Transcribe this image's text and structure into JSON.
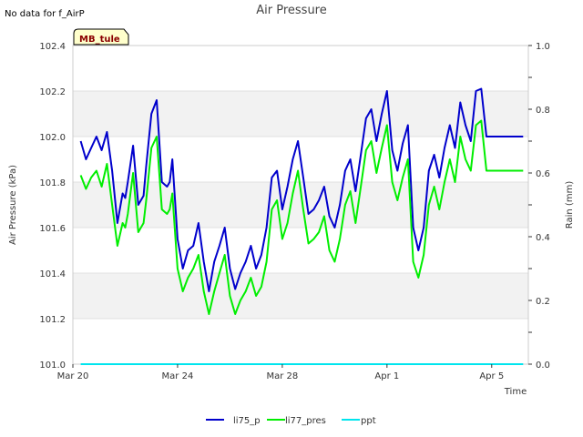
{
  "chart_data": {
    "type": "line",
    "title": "Air Pressure",
    "no_data_note": "No data for f_AirP",
    "site_label": "MB_tule",
    "xlabel": "Time",
    "ylabel": "Air Pressure (kPa)",
    "y2label": "Rain (mm)",
    "x_unit": "days since Mar 20",
    "xlim": [
      0,
      17.4
    ],
    "ylim": [
      101.0,
      102.4
    ],
    "y2lim": [
      0.0,
      1.0
    ],
    "x_ticks": [
      {
        "label": "Mar 20",
        "day": 0
      },
      {
        "label": "Mar 24",
        "day": 4
      },
      {
        "label": "Mar 28",
        "day": 8
      },
      {
        "label": "Apr 1",
        "day": 12
      },
      {
        "label": "Apr 5",
        "day": 16
      }
    ],
    "y_ticks": [
      "101.0",
      "101.2",
      "101.4",
      "101.6",
      "101.8",
      "102.0",
      "102.2",
      "102.4"
    ],
    "y2_ticks": [
      "0.0",
      "0.2",
      "0.4",
      "0.6",
      "0.8",
      "1.0"
    ],
    "bands": [
      [
        101.2,
        101.4
      ],
      [
        101.6,
        101.8
      ],
      [
        102.0,
        102.2
      ]
    ],
    "series": [
      {
        "name": "li75_p",
        "color": "#0000cc",
        "axis": "left",
        "x": [
          0.3,
          0.5,
          0.7,
          0.9,
          1.1,
          1.3,
          1.5,
          1.7,
          1.9,
          2.0,
          2.1,
          2.3,
          2.5,
          2.7,
          2.8,
          3.0,
          3.2,
          3.4,
          3.6,
          3.7,
          3.8,
          4.0,
          4.2,
          4.4,
          4.6,
          4.8,
          5.0,
          5.2,
          5.4,
          5.6,
          5.8,
          6.0,
          6.2,
          6.4,
          6.6,
          6.8,
          7.0,
          7.2,
          7.4,
          7.6,
          7.8,
          8.0,
          8.2,
          8.4,
          8.6,
          8.8,
          9.0,
          9.2,
          9.4,
          9.6,
          9.8,
          10.0,
          10.2,
          10.4,
          10.6,
          10.8,
          11.0,
          11.2,
          11.4,
          11.6,
          11.8,
          12.0,
          12.2,
          12.4,
          12.6,
          12.8,
          13.0,
          13.2,
          13.4,
          13.6,
          13.8,
          14.0,
          14.2,
          14.4,
          14.6,
          14.8,
          15.0,
          15.2,
          15.4,
          15.6,
          15.8,
          16.0,
          16.2,
          16.4,
          16.6,
          16.8,
          17.0,
          17.2
        ],
        "values": [
          101.98,
          101.9,
          101.95,
          102.0,
          101.94,
          102.02,
          101.85,
          101.62,
          101.75,
          101.73,
          101.8,
          101.96,
          101.7,
          101.74,
          101.87,
          102.1,
          102.16,
          101.8,
          101.78,
          101.8,
          101.9,
          101.55,
          101.42,
          101.5,
          101.52,
          101.62,
          101.45,
          101.32,
          101.45,
          101.52,
          101.6,
          101.42,
          101.33,
          101.4,
          101.45,
          101.52,
          101.42,
          101.48,
          101.6,
          101.82,
          101.85,
          101.68,
          101.78,
          101.9,
          101.98,
          101.82,
          101.66,
          101.68,
          101.72,
          101.78,
          101.65,
          101.6,
          101.7,
          101.85,
          101.9,
          101.76,
          101.92,
          102.08,
          102.12,
          101.98,
          102.1,
          102.2,
          101.94,
          101.85,
          101.97,
          102.05,
          101.6,
          101.5,
          101.6,
          101.85,
          101.92,
          101.82,
          101.95,
          102.05,
          101.95,
          102.15,
          102.05,
          101.98,
          102.2,
          102.21,
          102.0,
          102.0,
          102.0,
          102.0,
          102.0,
          102.0,
          102.0,
          102.0
        ]
      },
      {
        "name": "li77_pres",
        "color": "#00ee00",
        "axis": "left",
        "x": [
          0.3,
          0.5,
          0.7,
          0.9,
          1.1,
          1.3,
          1.5,
          1.7,
          1.9,
          2.0,
          2.1,
          2.3,
          2.5,
          2.7,
          2.8,
          3.0,
          3.2,
          3.4,
          3.6,
          3.7,
          3.8,
          4.0,
          4.2,
          4.4,
          4.6,
          4.8,
          5.0,
          5.2,
          5.4,
          5.6,
          5.8,
          6.0,
          6.2,
          6.4,
          6.6,
          6.8,
          7.0,
          7.2,
          7.4,
          7.6,
          7.8,
          8.0,
          8.2,
          8.4,
          8.6,
          8.8,
          9.0,
          9.2,
          9.4,
          9.6,
          9.8,
          10.0,
          10.2,
          10.4,
          10.6,
          10.8,
          11.0,
          11.2,
          11.4,
          11.6,
          11.8,
          12.0,
          12.2,
          12.4,
          12.6,
          12.8,
          13.0,
          13.2,
          13.4,
          13.6,
          13.8,
          14.0,
          14.2,
          14.4,
          14.6,
          14.8,
          15.0,
          15.2,
          15.4,
          15.6,
          15.8,
          16.0,
          16.2,
          16.4,
          16.6,
          16.8,
          17.0,
          17.2
        ],
        "values": [
          101.83,
          101.77,
          101.82,
          101.85,
          101.78,
          101.88,
          101.7,
          101.52,
          101.62,
          101.6,
          101.66,
          101.84,
          101.58,
          101.62,
          101.72,
          101.95,
          102.0,
          101.68,
          101.66,
          101.68,
          101.75,
          101.42,
          101.32,
          101.38,
          101.42,
          101.48,
          101.32,
          101.22,
          101.32,
          101.4,
          101.48,
          101.3,
          101.22,
          101.28,
          101.32,
          101.38,
          101.3,
          101.34,
          101.45,
          101.68,
          101.72,
          101.55,
          101.62,
          101.75,
          101.85,
          101.68,
          101.53,
          101.55,
          101.58,
          101.65,
          101.5,
          101.45,
          101.55,
          101.7,
          101.76,
          101.62,
          101.78,
          101.94,
          101.98,
          101.84,
          101.95,
          102.05,
          101.8,
          101.72,
          101.82,
          101.9,
          101.45,
          101.38,
          101.48,
          101.7,
          101.78,
          101.68,
          101.8,
          101.9,
          101.8,
          102.0,
          101.9,
          101.85,
          102.05,
          102.07,
          101.85,
          101.85,
          101.85,
          101.85,
          101.85,
          101.85,
          101.85,
          101.85
        ]
      },
      {
        "name": "ppt",
        "color": "#00e5ee",
        "axis": "right",
        "x": [
          0.3,
          17.2
        ],
        "values": [
          0.0,
          0.0
        ]
      }
    ],
    "legend": [
      "li75_p",
      "li77_pres",
      "ppt"
    ],
    "legend_position": "bottom-center"
  }
}
